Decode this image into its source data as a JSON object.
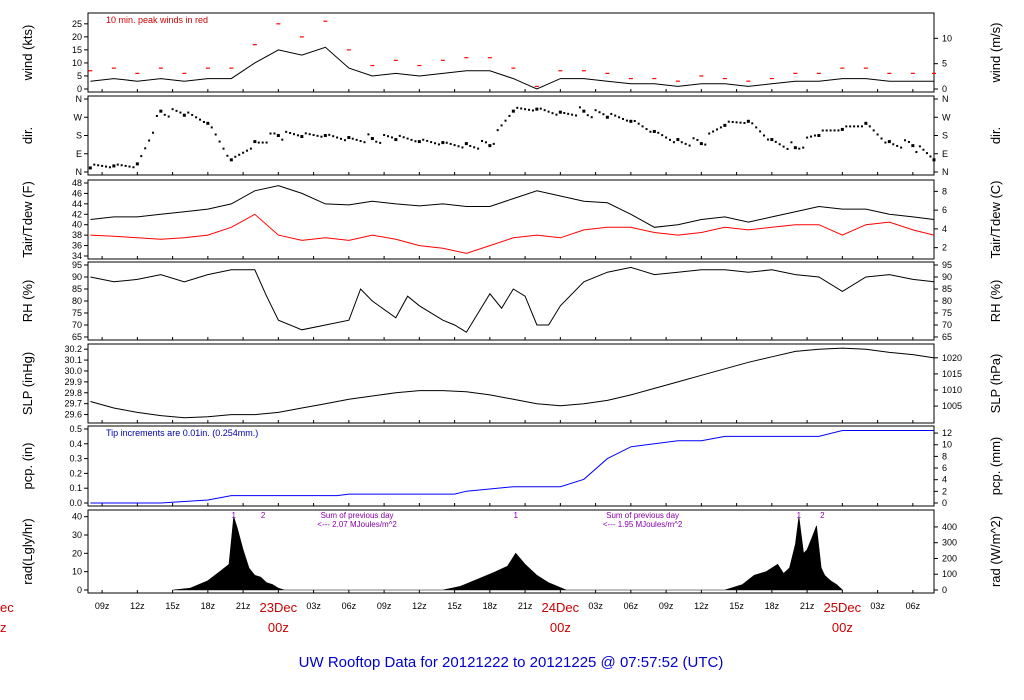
{
  "chart_data": {
    "type": "line",
    "title": "UW Rooftop Data for 20121222  to  20121225 @ 07:57:52  (UTC)",
    "time_axis": {
      "start_hour": 7.8,
      "end_hour": 79.8,
      "tick_labels": [
        "09z",
        "12z",
        "15z",
        "18z",
        "21z",
        "23Dec",
        "03z",
        "06z",
        "09z",
        "12z",
        "15z",
        "18z",
        "21z",
        "24Dec",
        "03z",
        "06z",
        "09z",
        "12z",
        "15z",
        "18z",
        "21z",
        "25Dec",
        "03z",
        "06z"
      ],
      "tick_hours": [
        9,
        12,
        15,
        18,
        21,
        24,
        27,
        30,
        33,
        36,
        39,
        42,
        45,
        48,
        51,
        54,
        57,
        60,
        63,
        66,
        69,
        72,
        75,
        78
      ],
      "day_labels": [
        {
          "date": "23Dec",
          "time": "00z",
          "hour": 24
        },
        {
          "date": "24Dec",
          "time": "00z",
          "hour": 48
        },
        {
          "date": "25Dec",
          "time": "00z",
          "hour": 72
        }
      ],
      "cut_left_labels": {
        "date": "ec",
        "time": "z"
      }
    },
    "panels": [
      {
        "id": "wind",
        "ylabel_left": "wind (kts)",
        "ylabel_right": "wind (m/s)",
        "ylim": [
          0,
          28
        ],
        "left_ticks": [
          "0",
          "5",
          "10",
          "15",
          "20",
          "25"
        ],
        "right_ticks": [
          "0",
          "5",
          "10"
        ],
        "annotation": "10 min. peak winds in red",
        "series": [
          {
            "name": "wind speed",
            "color": "#000000",
            "x": [
              8,
              10,
              12,
              14,
              16,
              18,
              20,
              22,
              24,
              26,
              28,
              30,
              32,
              34,
              36,
              38,
              40,
              42,
              44,
              46,
              48,
              50,
              52,
              54,
              56,
              58,
              60,
              62,
              64,
              66,
              68,
              70,
              72,
              74,
              76,
              78,
              79.8
            ],
            "y": [
              3,
              4,
              3,
              4,
              3,
              4,
              4,
              10,
              15,
              13,
              16,
              8,
              5,
              6,
              5,
              6,
              7,
              7,
              4,
              0,
              4,
              4,
              3,
              2,
              2,
              1,
              2,
              2,
              1,
              2,
              3,
              3,
              4,
              4,
              3,
              3,
              3
            ]
          },
          {
            "name": "10 min. peak winds",
            "color": "#ff0000",
            "x": [
              8,
              10,
              12,
              14,
              16,
              18,
              20,
              22,
              24,
              26,
              28,
              30,
              32,
              34,
              36,
              38,
              40,
              42,
              44,
              46,
              48,
              50,
              52,
              54,
              56,
              58,
              60,
              62,
              64,
              66,
              68,
              70,
              72,
              74,
              76,
              78,
              79.8
            ],
            "y": [
              7,
              8,
              6,
              8,
              6,
              8,
              8,
              17,
              25,
              20,
              26,
              15,
              9,
              11,
              9,
              11,
              12,
              12,
              8,
              1,
              7,
              7,
              6,
              4,
              4,
              3,
              5,
              4,
              3,
              4,
              6,
              6,
              8,
              8,
              6,
              6,
              6
            ]
          }
        ]
      },
      {
        "id": "dir",
        "ylabel_left": "dir.",
        "ylabel_right": "dir.",
        "ylim": [
          0,
          360
        ],
        "left_ticks": [
          "N",
          "E",
          "S",
          "W",
          "N"
        ],
        "right_ticks": [
          "N",
          "E",
          "S",
          "W",
          "N"
        ],
        "series": [
          {
            "name": "wind direction (deg)",
            "color": "#000000",
            "x": [
              8,
              10,
              12,
              14,
              16,
              18,
              20,
              22,
              24,
              26,
              28,
              30,
              32,
              34,
              36,
              38,
              40,
              42,
              44,
              46,
              48,
              50,
              52,
              54,
              56,
              58,
              60,
              62,
              64,
              66,
              68,
              70,
              72,
              74,
              76,
              78,
              79.8
            ],
            "y": [
              20,
              30,
              40,
              300,
              280,
              240,
              60,
              150,
              180,
              175,
              180,
              170,
              165,
              160,
              150,
              145,
              140,
              130,
              300,
              310,
              295,
              300,
              270,
              250,
              200,
              160,
              140,
              230,
              250,
              160,
              120,
              180,
              210,
              240,
              150,
              130,
              60
            ]
          }
        ]
      },
      {
        "id": "temp",
        "ylabel_left": "Tair/Tdew (F)",
        "ylabel_right": "Tair/Tdew (C)",
        "ylim": [
          34,
          48
        ],
        "left_ticks": [
          "34",
          "36",
          "38",
          "40",
          "42",
          "44",
          "46",
          "48"
        ],
        "right_ticks": [
          "2",
          "4",
          "6",
          "8"
        ],
        "series": [
          {
            "name": "Tair",
            "color": "#000000",
            "x": [
              8,
              10,
              12,
              14,
              16,
              18,
              20,
              22,
              24,
              26,
              28,
              30,
              32,
              34,
              36,
              38,
              40,
              42,
              44,
              46,
              48,
              50,
              52,
              54,
              56,
              58,
              60,
              62,
              64,
              66,
              68,
              70,
              72,
              74,
              76,
              78,
              79.8
            ],
            "y": [
              41,
              41.5,
              41.5,
              42,
              42.5,
              43,
              44,
              46.5,
              47.5,
              46,
              44,
              43.8,
              44.5,
              44,
              43.6,
              44,
              43.5,
              43.5,
              45,
              46.5,
              45.5,
              44.5,
              44.2,
              42,
              39.5,
              40,
              41,
              41.5,
              40.5,
              41.5,
              42.5,
              43.5,
              43,
              43,
              42,
              41.5,
              41
            ]
          },
          {
            "name": "Tdew",
            "color": "#ff0000",
            "x": [
              8,
              10,
              12,
              14,
              16,
              18,
              20,
              22,
              24,
              26,
              28,
              30,
              32,
              34,
              36,
              38,
              40,
              42,
              44,
              46,
              48,
              50,
              52,
              54,
              56,
              58,
              60,
              62,
              64,
              66,
              68,
              70,
              72,
              74,
              76,
              78,
              79.8
            ],
            "y": [
              38,
              37.8,
              37.5,
              37.2,
              37.5,
              38,
              39.5,
              42,
              38,
              37,
              37.5,
              37,
              38,
              37.2,
              36,
              35.5,
              34.5,
              36,
              37.5,
              38,
              37.5,
              39,
              39.5,
              39.5,
              38.5,
              38,
              38.5,
              39.5,
              39,
              39.5,
              40,
              40,
              38,
              40,
              40.5,
              39,
              38
            ]
          }
        ]
      },
      {
        "id": "rh",
        "ylabel_left": "RH (%)",
        "ylabel_right": "RH (%)",
        "ylim": [
          65,
          95
        ],
        "left_ticks": [
          "65",
          "70",
          "75",
          "80",
          "85",
          "90",
          "95"
        ],
        "right_ticks": [
          "65",
          "70",
          "75",
          "80",
          "85",
          "90",
          "95"
        ],
        "series": [
          {
            "name": "RH",
            "color": "#000000",
            "x": [
              8,
              10,
              12,
              14,
              16,
              18,
              20,
              22,
              23,
              24,
              26,
              28,
              30,
              31,
              32,
              34,
              35,
              36,
              38,
              39,
              40,
              42,
              43,
              44,
              45,
              46,
              47,
              48,
              50,
              52,
              54,
              56,
              58,
              60,
              62,
              64,
              66,
              68,
              70,
              72,
              74,
              76,
              78,
              79.8
            ],
            "y": [
              90,
              88,
              89,
              91,
              88,
              91,
              93,
              93,
              82,
              72,
              68,
              70,
              72,
              85,
              80,
              73,
              82,
              78,
              72,
              70,
              67,
              83,
              77,
              85,
              82,
              70,
              70,
              78,
              88,
              92,
              94,
              91,
              92,
              93,
              93,
              92,
              93,
              91,
              90,
              84,
              90,
              91,
              89,
              88
            ]
          }
        ]
      },
      {
        "id": "slp",
        "ylabel_left": "SLP (inHg)",
        "ylabel_right": "SLP (hPa)",
        "ylim": [
          29.55,
          30.22
        ],
        "left_ticks": [
          "29.6",
          "29.7",
          "29.8",
          "29.9",
          "30.0",
          "30.1",
          "30.2"
        ],
        "right_ticks": [
          "1005",
          "1010",
          "1015",
          "1020"
        ],
        "series": [
          {
            "name": "SLP",
            "color": "#000000",
            "x": [
              8,
              10,
              12,
              14,
              16,
              18,
              20,
              22,
              24,
              26,
              28,
              30,
              32,
              34,
              36,
              38,
              40,
              42,
              44,
              46,
              48,
              50,
              52,
              54,
              56,
              58,
              60,
              62,
              64,
              66,
              68,
              70,
              72,
              74,
              76,
              78,
              79.8
            ],
            "y": [
              29.72,
              29.66,
              29.62,
              29.59,
              29.57,
              29.58,
              29.6,
              29.6,
              29.62,
              29.66,
              29.7,
              29.74,
              29.77,
              29.8,
              29.82,
              29.82,
              29.81,
              29.78,
              29.74,
              29.7,
              29.68,
              29.7,
              29.73,
              29.78,
              29.84,
              29.9,
              29.96,
              30.02,
              30.08,
              30.13,
              30.18,
              30.2,
              30.21,
              30.2,
              30.17,
              30.15,
              30.12
            ]
          }
        ]
      },
      {
        "id": "pcp",
        "ylabel_left": "pcp. (in)",
        "ylabel_right": "pcp. (mm)",
        "ylim": [
          0,
          0.5
        ],
        "left_ticks": [
          "0.0",
          "0.1",
          "0.2",
          "0.3",
          "0.4",
          "0.5"
        ],
        "right_ticks": [
          "0",
          "2",
          "4",
          "6",
          "8",
          "10",
          "12"
        ],
        "annotation": "Tip increments are 0.01in. (0.254mm.)",
        "series": [
          {
            "name": "accumulated precipitation",
            "color": "#0000ff",
            "x": [
              8,
              14,
              18,
              20,
              29,
              30,
              39,
              40,
              44,
              48,
              50,
              52,
              54,
              58,
              60,
              62,
              70,
              72,
              79.8
            ],
            "y": [
              0,
              0,
              0.02,
              0.05,
              0.05,
              0.06,
              0.06,
              0.08,
              0.11,
              0.11,
              0.16,
              0.3,
              0.38,
              0.42,
              0.42,
              0.45,
              0.45,
              0.49,
              0.49
            ]
          }
        ]
      },
      {
        "id": "rad",
        "ylabel_left": "rad(Lgly/hr)",
        "ylabel_right": "rad (W/m^2)",
        "ylim": [
          0,
          42
        ],
        "left_ticks": [
          "0",
          "10",
          "20",
          "30",
          "40"
        ],
        "right_ticks": [
          "0",
          "100",
          "200",
          "300",
          "400"
        ],
        "annotations": [
          {
            "text": "Sum of previous day",
            "hour": 30.7,
            "line": 1
          },
          {
            "text": "<--- 2.07 MJoules/m^2",
            "hour": 30.7,
            "line": 2
          },
          {
            "text": "Sum of previous day",
            "hour": 55.0,
            "line": 1
          },
          {
            "text": "<--- 1.95 MJoules/m^2",
            "hour": 55.0,
            "line": 2
          }
        ],
        "markers": [
          {
            "label": "1",
            "hour": 20.2
          },
          {
            "label": "2",
            "hour": 22.7
          },
          {
            "label": "1",
            "hour": 44.2
          },
          {
            "label": "1",
            "hour": 68.3
          },
          {
            "label": "2",
            "hour": 70.3
          }
        ],
        "series": [
          {
            "name": "solar radiation",
            "color": "#000000",
            "fill": true,
            "x": [
              15,
              16.5,
              18,
              19,
              19.8,
              20.2,
              20.5,
              21,
              21.5,
              22,
              22.5,
              23,
              23.5,
              24,
              24.5,
              38,
              39.5,
              41,
              42.5,
              43.5,
              44.2,
              45,
              46,
              47,
              48.5,
              62,
              63.5,
              64.5,
              65.5,
              66.5,
              67,
              67.5,
              68,
              68.3,
              68.7,
              69,
              69.5,
              69.8,
              70.2,
              70.5,
              71,
              71.5,
              72
            ],
            "y": [
              0,
              1,
              5,
              10,
              14,
              40,
              34,
              22,
              12,
              8,
              7,
              4,
              3,
              1,
              0,
              0,
              2,
              6,
              10,
              13,
              20,
              14,
              8,
              4,
              0,
              0,
              3,
              8,
              10,
              14,
              9,
              12,
              25,
              40,
              20,
              22,
              30,
              35,
              12,
              8,
              5,
              3,
              0
            ]
          }
        ]
      }
    ]
  }
}
